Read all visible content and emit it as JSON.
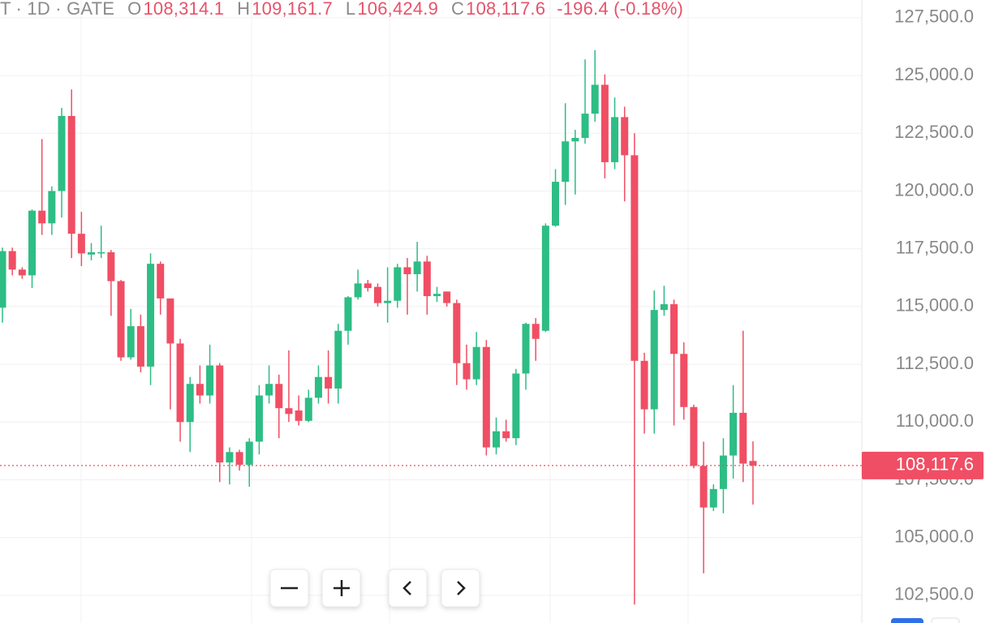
{
  "header": {
    "symbol": "T · 1D · GATE",
    "open_key": "O",
    "open": "108,314.1",
    "high_key": "H",
    "high": "109,161.7",
    "low_key": "L",
    "low": "106,424.9",
    "close_key": "C",
    "close": "108,117.6",
    "change": "-196.4 (-0.18%)"
  },
  "chart_data": {
    "type": "candlestick",
    "up_color": "#2dbd85",
    "down_color": "#f04e64",
    "grid": true,
    "ylim": [
      101300,
      128270
    ],
    "yticks": [
      {
        "value": 102500,
        "label": "102,500.0"
      },
      {
        "value": 105000,
        "label": "105,000.0"
      },
      {
        "value": 107500,
        "label": "107,500.0"
      },
      {
        "value": 110000,
        "label": "110,000.0"
      },
      {
        "value": 112500,
        "label": "112,500.0"
      },
      {
        "value": 115000,
        "label": "115,000.0"
      },
      {
        "value": 117500,
        "label": "117,500.0"
      },
      {
        "value": 120000,
        "label": "120,000.0"
      },
      {
        "value": 122500,
        "label": "122,500.0"
      },
      {
        "value": 125000,
        "label": "125,000.0"
      },
      {
        "value": 127500,
        "label": "127,500.0"
      }
    ],
    "last_price_label": "108,117.6",
    "open": [
      114950,
      117400,
      116600,
      116350,
      119150,
      118600,
      120000,
      123250,
      118150,
      117250,
      117300,
      117350,
      116100,
      112800,
      114150,
      112400,
      116850,
      115350,
      113400,
      110000,
      111650,
      111150,
      112450,
      108250,
      108700,
      108150,
      109150,
      111150,
      111650,
      110600,
      110500,
      110050,
      111050,
      111950,
      111450,
      113950,
      115400,
      116000,
      115850,
      115150,
      115250,
      116700,
      116400,
      116950,
      115450,
      115650,
      115150,
      112550,
      111850,
      113250,
      108900,
      109600,
      109300,
      112100,
      114250,
      113950,
      118500,
      120400,
      122150,
      122300,
      123350,
      124600,
      121250,
      123200,
      121550,
      112650,
      110550,
      114850,
      115100,
      112950,
      110650,
      108100,
      106300,
      107100,
      108550,
      110400,
      108314.1
    ],
    "high": [
      117550,
      117550,
      116700,
      119200,
      122250,
      120200,
      123600,
      124400,
      119100,
      117750,
      118500,
      117450,
      116150,
      114900,
      114650,
      117300,
      116950,
      115350,
      113600,
      111950,
      112450,
      113350,
      112550,
      108900,
      108800,
      109300,
      111600,
      112450,
      112050,
      113100,
      111150,
      111400,
      112450,
      113100,
      114250,
      115450,
      116600,
      116150,
      116000,
      116700,
      116850,
      117100,
      117800,
      117200,
      115850,
      115650,
      115300,
      113350,
      113900,
      113550,
      110200,
      110100,
      112300,
      114300,
      114500,
      118600,
      120950,
      123800,
      122650,
      125700,
      126100,
      125050,
      124050,
      123650,
      122500,
      113000,
      115700,
      115900,
      115300,
      113450,
      110750,
      109150,
      107300,
      109300,
      111600,
      113950,
      109161.7
    ],
    "low": [
      114300,
      116350,
      116200,
      115800,
      118100,
      118100,
      118850,
      117100,
      116750,
      117000,
      117100,
      114600,
      112650,
      112700,
      112150,
      111600,
      114650,
      110550,
      109150,
      108700,
      110800,
      110800,
      107400,
      107300,
      107900,
      107200,
      108600,
      110800,
      109300,
      110000,
      109850,
      110000,
      110800,
      110800,
      110800,
      113350,
      115300,
      115650,
      115000,
      114300,
      114950,
      114650,
      115650,
      114650,
      115200,
      115000,
      111600,
      111400,
      111600,
      108550,
      108600,
      109150,
      109000,
      111400,
      112650,
      113900,
      118450,
      119400,
      119850,
      122050,
      123000,
      120550,
      120950,
      119550,
      102100,
      109500,
      109500,
      114600,
      109850,
      110100,
      108000,
      103450,
      106150,
      106050,
      107550,
      107400,
      106424.9
    ],
    "close": [
      117400,
      116600,
      116350,
      119150,
      118600,
      120000,
      123250,
      118150,
      117300,
      117350,
      117350,
      116100,
      112800,
      114150,
      112400,
      116850,
      115350,
      113400,
      110000,
      111650,
      111150,
      112450,
      108250,
      108700,
      108150,
      109150,
      111150,
      111650,
      110600,
      110350,
      110050,
      111050,
      111950,
      111450,
      113950,
      115400,
      116000,
      115800,
      115150,
      115250,
      116700,
      116400,
      116950,
      115450,
      115550,
      115150,
      112550,
      111850,
      113250,
      108900,
      109600,
      109300,
      112100,
      114250,
      113600,
      118500,
      120400,
      122150,
      122300,
      123350,
      124600,
      121250,
      123200,
      121550,
      112650,
      110550,
      114850,
      115100,
      112950,
      110650,
      108100,
      106300,
      107100,
      108550,
      110400,
      108200,
      108117.6
    ]
  }
}
